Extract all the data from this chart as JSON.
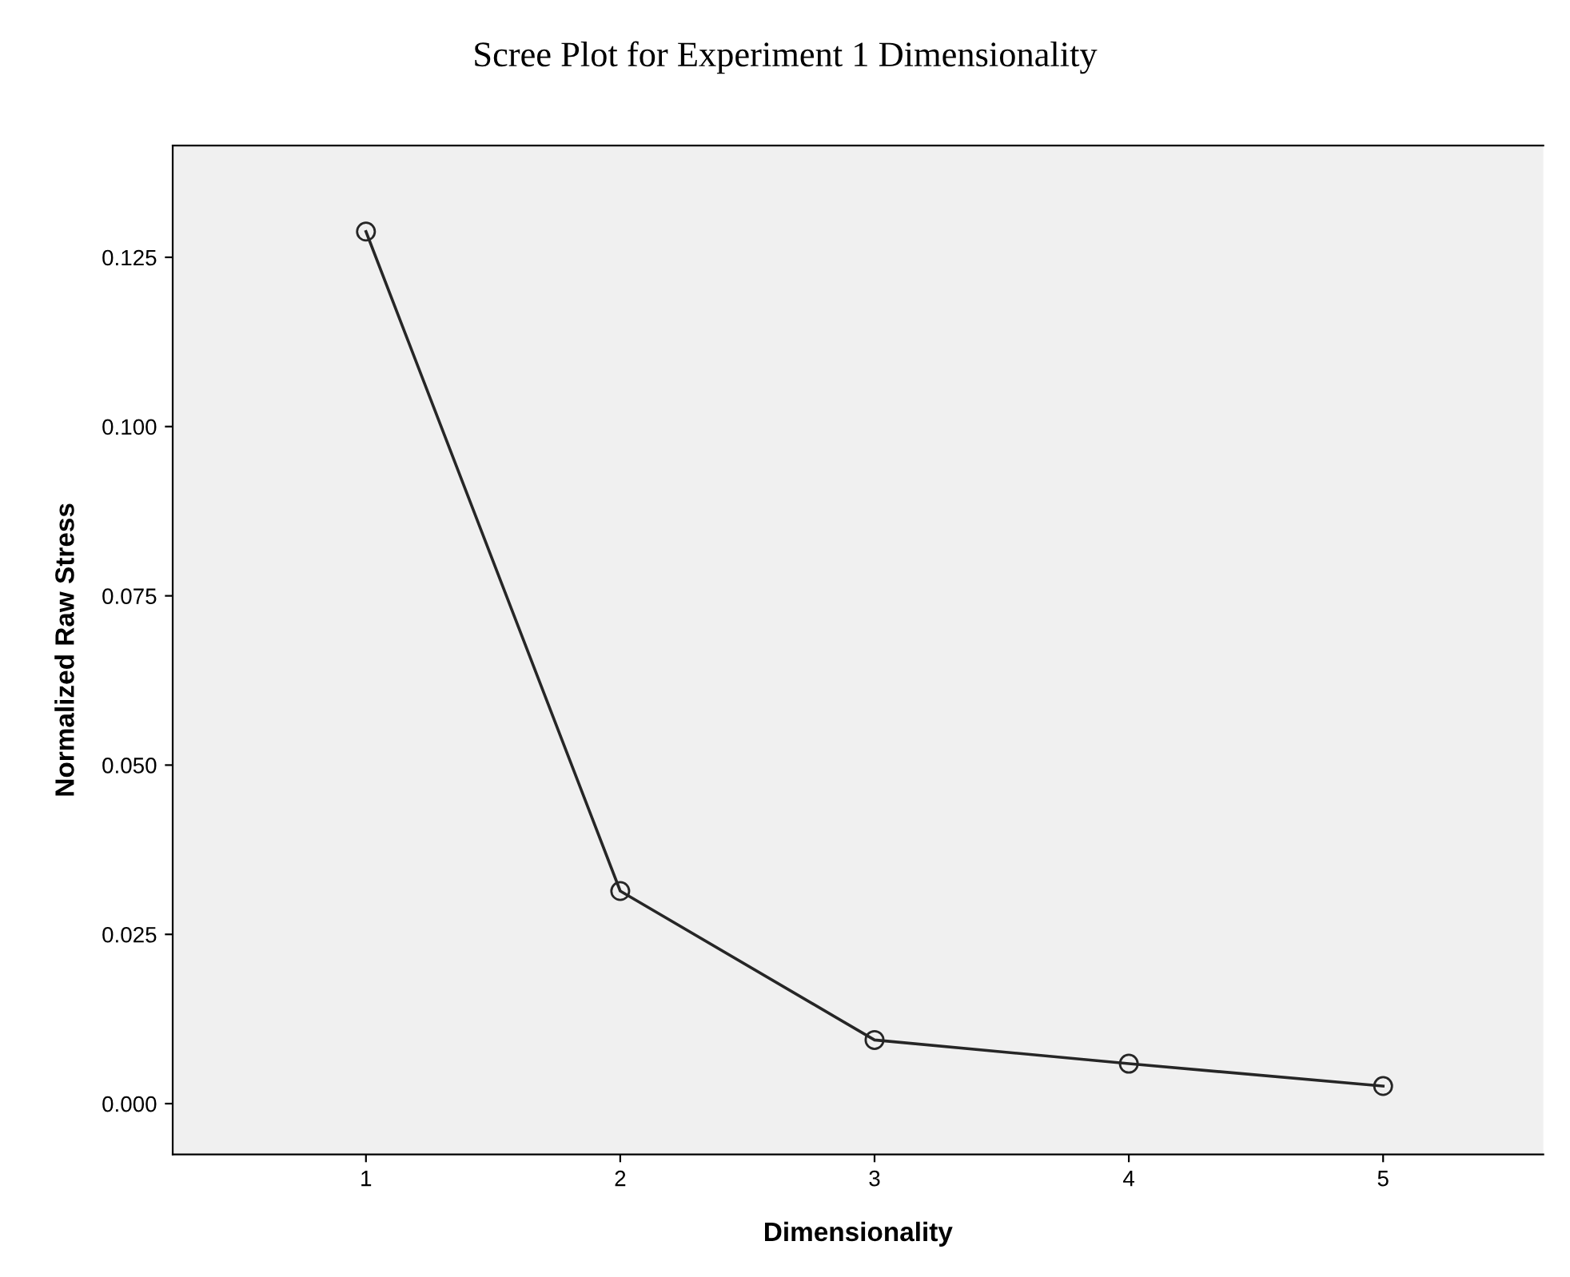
{
  "chart_data": {
    "type": "line",
    "title": "Scree Plot for Experiment 1 Dimensionality",
    "xlabel": "Dimensionality",
    "ylabel": "Normalized Raw Stress",
    "x": [
      1,
      2,
      3,
      4,
      5
    ],
    "series": [
      {
        "color": "#262626",
        "values": [
          0.1288,
          0.0314,
          0.0094,
          0.0059,
          0.0026
        ]
      }
    ],
    "xlim": [
      0.24,
      5.63
    ],
    "xticks": [
      1,
      2,
      3,
      4,
      5
    ],
    "ylim": [
      -0.0075,
      0.1415
    ],
    "yticks": [
      {
        "value": 0,
        "label": "0.000"
      },
      {
        "value": 0.025,
        "label": "0.025"
      },
      {
        "value": 0.05,
        "label": "0.050"
      },
      {
        "value": 0.075,
        "label": "0.075"
      },
      {
        "value": 0.1,
        "label": "0.100"
      },
      {
        "value": 0.125,
        "label": "0.125"
      }
    ],
    "grid": false,
    "marker": "circle",
    "line_style": "solid"
  }
}
